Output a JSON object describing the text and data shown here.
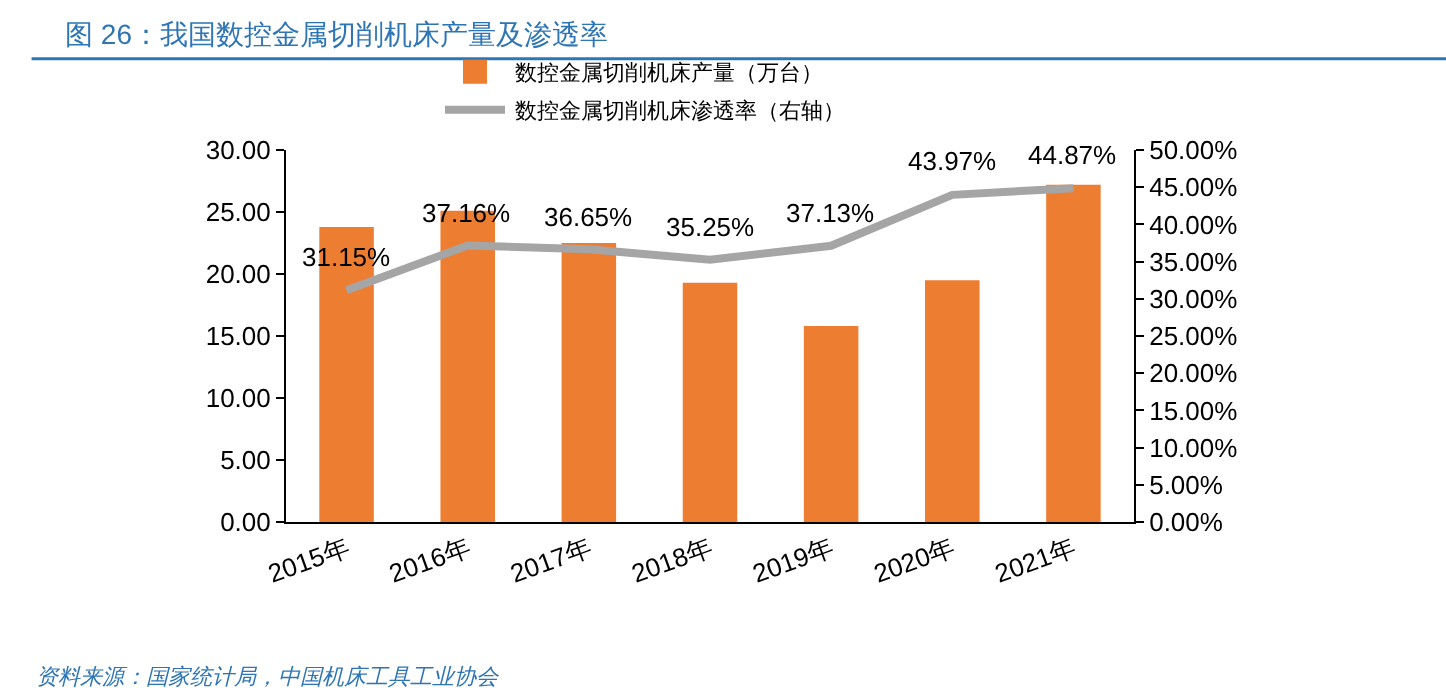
{
  "chart_data": {
    "type": "bar",
    "title": "图 26：我国数控金属切削机床产量及渗透率",
    "categories": [
      "2015年",
      "2016年",
      "2017年",
      "2018年",
      "2019年",
      "2020年",
      "2021年"
    ],
    "series": [
      {
        "name": "数控金属切削机床产量（万台）",
        "color": "#ed7d31",
        "values": [
          23.8,
          25.1,
          22.5,
          19.3,
          15.8,
          19.5,
          27.2
        ]
      },
      {
        "name": "数控金属切削机床渗透率（右轴）",
        "type": "line",
        "axis": "y2",
        "color": "#a5a5a5",
        "marker": "none",
        "values": [
          31.15,
          37.16,
          36.65,
          35.25,
          37.13,
          43.97,
          44.87
        ],
        "value_labels": [
          "31.15%",
          "37.16%",
          "36.65%",
          "35.25%",
          "37.13%",
          "43.97%",
          "44.87%"
        ]
      }
    ],
    "ylim": [
      0,
      30
    ],
    "yticks": [
      {
        "value": 0,
        "label": "0.00"
      },
      {
        "value": 5,
        "label": "5.00"
      },
      {
        "value": 10,
        "label": "10.00"
      },
      {
        "value": 15,
        "label": "15.00"
      },
      {
        "value": 20,
        "label": "20.00"
      },
      {
        "value": 25,
        "label": "25.00"
      },
      {
        "value": 30,
        "label": "30.00"
      }
    ],
    "y2lim": [
      0,
      50
    ],
    "y2ticks": [
      {
        "value": 0,
        "label": "0.00%"
      },
      {
        "value": 5,
        "label": "5.00%"
      },
      {
        "value": 10,
        "label": "10.00%"
      },
      {
        "value": 15,
        "label": "15.00%"
      },
      {
        "value": 20,
        "label": "20.00%"
      },
      {
        "value": 25,
        "label": "25.00%"
      },
      {
        "value": 30,
        "label": "30.00%"
      },
      {
        "value": 35,
        "label": "35.00%"
      },
      {
        "value": 40,
        "label": "40.00%"
      },
      {
        "value": 45,
        "label": "45.00%"
      },
      {
        "value": 50,
        "label": "50.00%"
      }
    ],
    "grid": false,
    "legend": "top",
    "annotations": [
      "资料来源：国家统计局，中国机床工具工业协会"
    ]
  }
}
